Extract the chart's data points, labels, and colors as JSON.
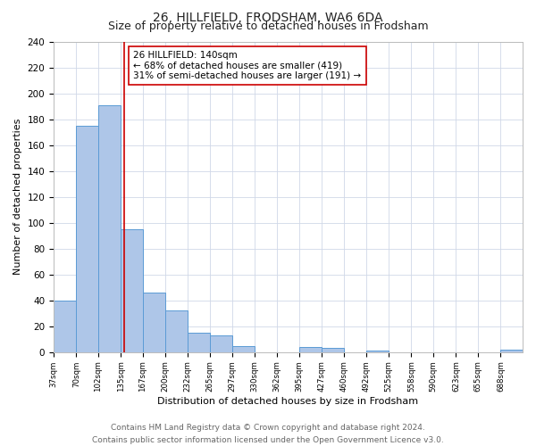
{
  "title": "26, HILLFIELD, FRODSHAM, WA6 6DA",
  "subtitle": "Size of property relative to detached houses in Frodsham",
  "xlabel": "Distribution of detached houses by size in Frodsham",
  "ylabel": "Number of detached properties",
  "bin_edges": [
    37,
    70,
    102,
    135,
    167,
    200,
    232,
    265,
    297,
    330,
    362,
    395,
    427,
    460,
    492,
    525,
    558,
    590,
    623,
    655,
    688,
    720
  ],
  "bin_counts": [
    40,
    175,
    191,
    95,
    46,
    32,
    15,
    13,
    5,
    0,
    0,
    4,
    3,
    0,
    1,
    0,
    0,
    0,
    0,
    0,
    2
  ],
  "bar_color": "#aec6e8",
  "bar_edge_color": "#5b9bd5",
  "bar_linewidth": 0.7,
  "vline_x": 140,
  "vline_color": "#cc0000",
  "vline_linewidth": 1.2,
  "annotation_title": "26 HILLFIELD: 140sqm",
  "annotation_line1": "← 68% of detached houses are smaller (419)",
  "annotation_line2": "31% of semi-detached houses are larger (191) →",
  "annotation_fontsize": 7.5,
  "annotation_box_color": "#ffffff",
  "annotation_box_edgecolor": "#cc0000",
  "ylim": [
    0,
    240
  ],
  "yticks": [
    0,
    20,
    40,
    60,
    80,
    100,
    120,
    140,
    160,
    180,
    200,
    220,
    240
  ],
  "tick_labels": [
    "37sqm",
    "70sqm",
    "102sqm",
    "135sqm",
    "167sqm",
    "200sqm",
    "232sqm",
    "265sqm",
    "297sqm",
    "330sqm",
    "362sqm",
    "395sqm",
    "427sqm",
    "460sqm",
    "492sqm",
    "525sqm",
    "558sqm",
    "590sqm",
    "623sqm",
    "655sqm",
    "688sqm"
  ],
  "footer_line1": "Contains HM Land Registry data © Crown copyright and database right 2024.",
  "footer_line2": "Contains public sector information licensed under the Open Government Licence v3.0.",
  "footer_fontsize": 6.5,
  "background_color": "#ffffff",
  "grid_color": "#d0d8e8",
  "title_fontsize": 10,
  "subtitle_fontsize": 9,
  "xlabel_fontsize": 8,
  "ylabel_fontsize": 8
}
